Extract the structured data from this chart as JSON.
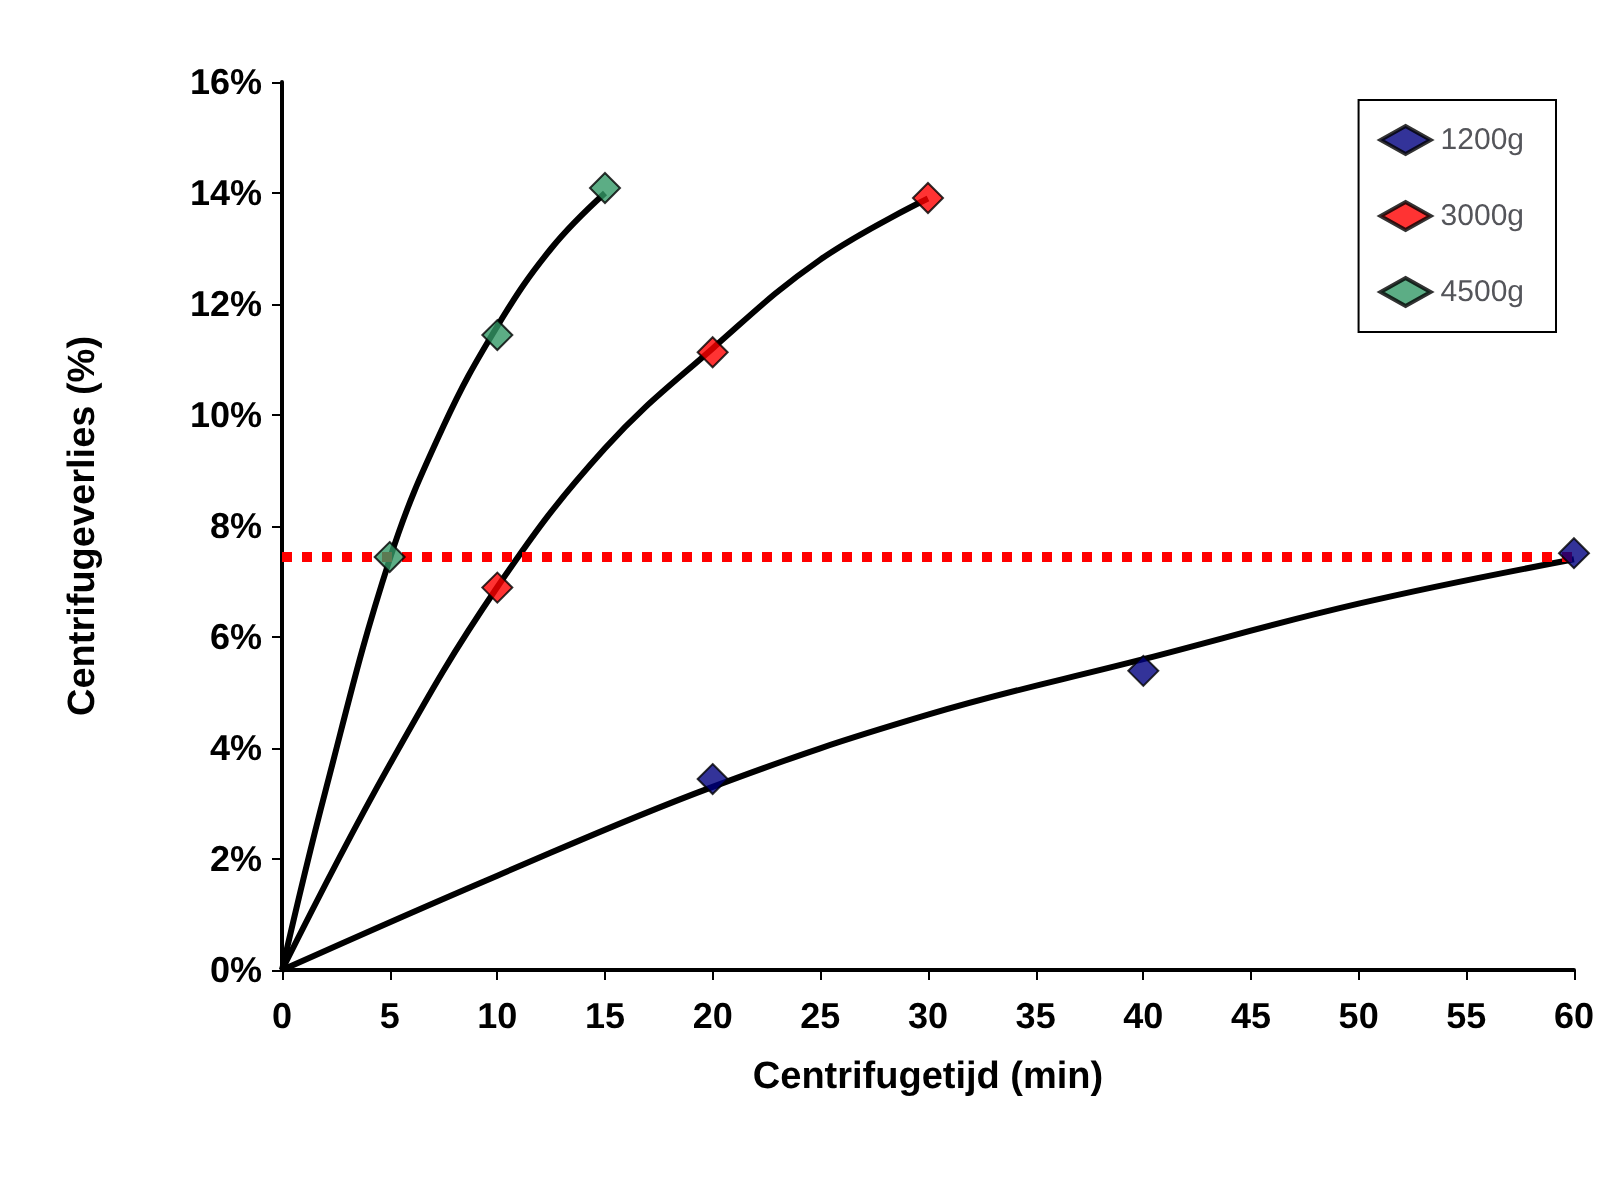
{
  "chart_data": {
    "type": "scatter",
    "xlabel": "Centrifugetijd (min)",
    "ylabel": "Centrifugeverlies (%)",
    "xlim": [
      0,
      60
    ],
    "xticks": [
      0,
      5,
      10,
      15,
      20,
      25,
      30,
      35,
      40,
      45,
      50,
      55,
      60
    ],
    "ylim": [
      0,
      16
    ],
    "yticks": [
      {
        "value": 0,
        "label": "0%"
      },
      {
        "value": 2,
        "label": "2%"
      },
      {
        "value": 4,
        "label": "4%"
      },
      {
        "value": 6,
        "label": "6%"
      },
      {
        "value": 8,
        "label": "8%"
      },
      {
        "value": 10,
        "label": "10%"
      },
      {
        "value": 12,
        "label": "12%"
      },
      {
        "value": 14,
        "label": "14%"
      },
      {
        "value": 16,
        "label": "16%"
      }
    ],
    "grid": false,
    "legend": "top right",
    "marker": "diamond",
    "series": [
      {
        "name": "1200g",
        "color": "#000080",
        "x": [
          20,
          40,
          60
        ],
        "values": [
          3.44,
          5.39,
          7.51
        ]
      },
      {
        "name": "3000g",
        "color": "#ff0000",
        "x": [
          10,
          20,
          30
        ],
        "values": [
          6.89,
          11.13,
          13.91
        ]
      },
      {
        "name": "4500g",
        "color": "#339966",
        "x": [
          5,
          10,
          15
        ],
        "values": [
          7.44,
          11.44,
          14.09
        ]
      },
      {
        "type": "line",
        "color": "#000000",
        "marker": "none",
        "x": [
          0,
          10,
          20,
          30,
          40,
          50,
          60
        ],
        "values": [
          0,
          1.7,
          3.3,
          4.6,
          5.6,
          6.6,
          7.4
        ]
      },
      {
        "type": "line",
        "color": "#000000",
        "marker": "none",
        "x": [
          0,
          5,
          10,
          15,
          20,
          25,
          30
        ],
        "values": [
          0,
          3.7,
          6.9,
          9.4,
          11.2,
          12.8,
          13.9
        ]
      },
      {
        "type": "line",
        "color": "#000000",
        "marker": "none",
        "x": [
          0,
          2,
          5,
          7.5,
          10,
          12.5,
          15
        ],
        "values": [
          0,
          3.2,
          7.4,
          9.8,
          11.6,
          13.0,
          14.0
        ]
      }
    ],
    "ref_lines": [
      {
        "axis": "y",
        "value": 7.44,
        "color": "#ff0000",
        "line_style": "dotted"
      }
    ]
  }
}
